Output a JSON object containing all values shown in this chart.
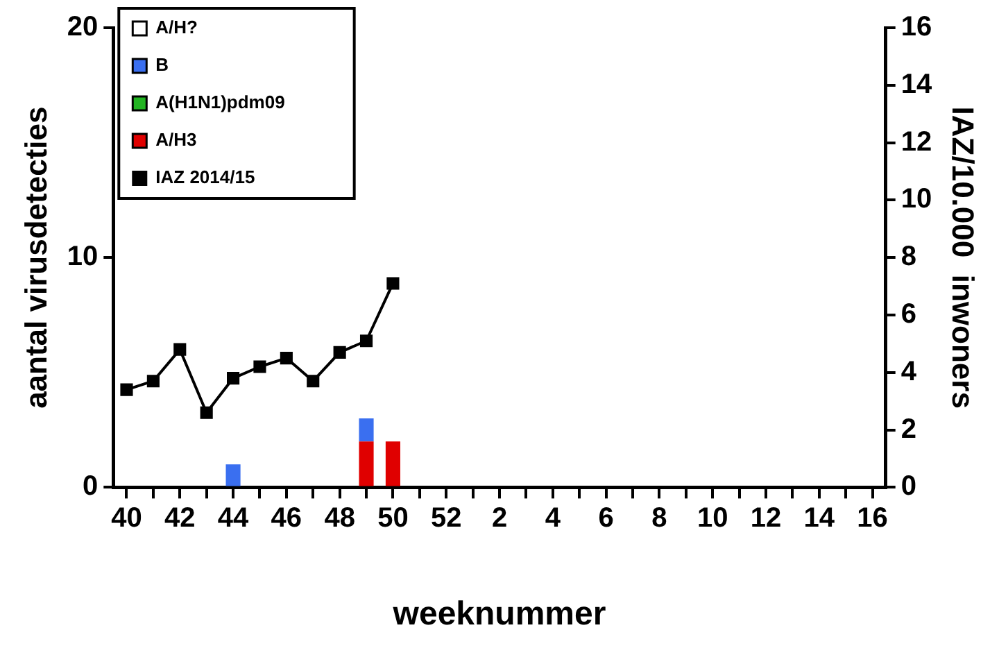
{
  "chart_data": {
    "type": "bar",
    "xlabel": "weeknummer",
    "ylabel": "aantal virusdetecties",
    "y2label": "IAZ/10.000  inwoners",
    "categories": [
      "40",
      null,
      "42",
      null,
      "44",
      null,
      "46",
      null,
      "48",
      null,
      "50",
      null,
      "52",
      null,
      "2",
      null,
      "4",
      null,
      "6",
      null,
      "8",
      null,
      "10",
      null,
      "12",
      null,
      "14",
      null,
      "16"
    ],
    "stacked": true,
    "legend": "top left",
    "grid": false,
    "series": [
      {
        "name": "IAZ 2014/15",
        "type": "line",
        "axis": "y2",
        "color": "#000000",
        "marker": "square",
        "line_style": "solid",
        "values": [
          3.4,
          3.7,
          4.8,
          2.6,
          3.8,
          4.2,
          4.5,
          3.7,
          4.7,
          5.1,
          7.1,
          null,
          null,
          null,
          null,
          null,
          null,
          null,
          null,
          null,
          null,
          null,
          null,
          null,
          null,
          null,
          null,
          null,
          null
        ]
      },
      {
        "name": "A/H3",
        "color": "#e00000",
        "values": [
          0,
          0,
          0,
          0,
          0,
          0,
          0,
          0,
          0,
          2,
          2,
          null,
          null,
          null,
          null,
          null,
          null,
          null,
          null,
          null,
          null,
          null,
          null,
          null,
          null,
          null,
          null,
          null,
          null
        ]
      },
      {
        "name": "A(H1N1)pdm09",
        "color": "#22b422",
        "values": [
          0,
          0,
          0,
          0,
          0,
          0,
          0,
          0,
          0,
          0,
          0,
          null,
          null,
          null,
          null,
          null,
          null,
          null,
          null,
          null,
          null,
          null,
          null,
          null,
          null,
          null,
          null,
          null,
          null
        ]
      },
      {
        "name": "B",
        "color": "#3a6ff0",
        "values": [
          0,
          0,
          0,
          0,
          1,
          0,
          0,
          0,
          0,
          1,
          0,
          null,
          null,
          null,
          null,
          null,
          null,
          null,
          null,
          null,
          null,
          null,
          null,
          null,
          null,
          null,
          null,
          null,
          null
        ]
      },
      {
        "name": "A/H?",
        "color": "#ffffff",
        "values": [
          0,
          0,
          0,
          0,
          0,
          0,
          0,
          0,
          0,
          0,
          0,
          null,
          null,
          null,
          null,
          null,
          null,
          null,
          null,
          null,
          null,
          null,
          null,
          null,
          null,
          null,
          null,
          null,
          null
        ]
      }
    ],
    "ylim": [
      0,
      20
    ],
    "yticks": [
      0,
      10,
      20
    ],
    "y2lim": [
      0,
      16
    ],
    "y2ticks": [
      0,
      2,
      4,
      6,
      8,
      10,
      12,
      14,
      16
    ]
  }
}
